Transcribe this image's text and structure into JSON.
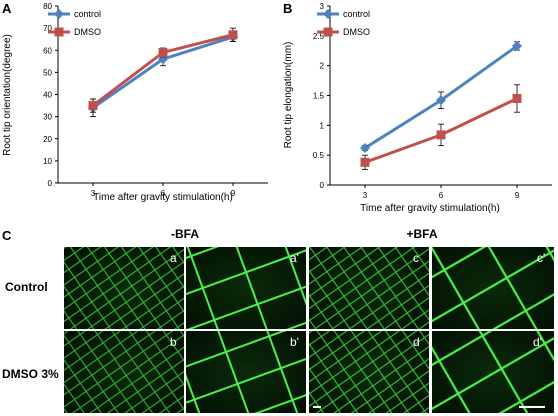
{
  "panel_letters": {
    "A": "A",
    "B": "B",
    "C": "C"
  },
  "chart_data": [
    {
      "type": "line",
      "panel": "A",
      "ylabel": "Root tip orientation(degree)",
      "xlabel": "Time after gravity stimulation(h)",
      "categories": [
        "3",
        "6",
        "9"
      ],
      "ylim": [
        0,
        80
      ],
      "yticks": [
        "0",
        "10",
        "20",
        "30",
        "40",
        "50",
        "60",
        "70",
        "80"
      ],
      "legend_position": "top-left",
      "series": [
        {
          "name": "control",
          "values": [
            34,
            56,
            66
          ],
          "errors": [
            4,
            3,
            2
          ],
          "color": "#4f81bd",
          "marker": "diamond"
        },
        {
          "name": "DMSO",
          "values": [
            35,
            59,
            67
          ],
          "errors": [
            3,
            2,
            3
          ],
          "color": "#c0504d",
          "marker": "square"
        }
      ]
    },
    {
      "type": "line",
      "panel": "B",
      "ylabel": "Root tip elongation(mm)",
      "xlabel": "Time after gravity stimulation(h)",
      "categories": [
        "3",
        "6",
        "9"
      ],
      "ylim": [
        0,
        3
      ],
      "yticks": [
        "0",
        "0.5",
        "1",
        "1.5",
        "2",
        "2.5",
        "3"
      ],
      "legend_position": "top-left",
      "series": [
        {
          "name": "control",
          "values": [
            0.62,
            1.42,
            2.33
          ],
          "errors": [
            0.04,
            0.14,
            0.07
          ],
          "color": "#4f81bd",
          "marker": "diamond"
        },
        {
          "name": "DMSO",
          "values": [
            0.38,
            0.84,
            1.45
          ],
          "errors": [
            0.12,
            0.18,
            0.23
          ],
          "color": "#c0504d",
          "marker": "square"
        }
      ]
    }
  ],
  "micrographs": {
    "columns": [
      "-BFA",
      "+BFA"
    ],
    "rows": [
      "Control",
      "DMSO 3%"
    ],
    "image_labels": [
      "a",
      "a'",
      "c",
      "c'",
      "b",
      "b'",
      "d",
      "d'"
    ]
  }
}
